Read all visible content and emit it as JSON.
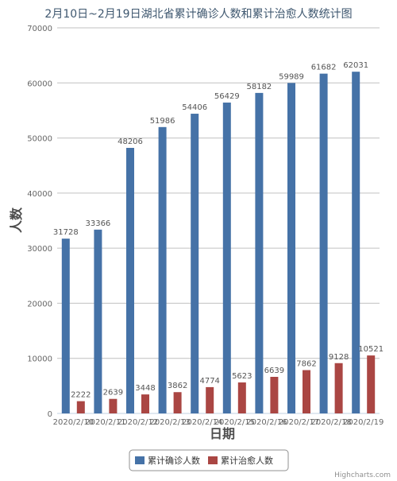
{
  "chart_data": {
    "type": "bar",
    "title": "2月10日~2月19日湖北省累计确诊人数和累计治愈人数统计图",
    "xlabel": "日期",
    "ylabel": "人数",
    "categories": [
      "2020/2/10",
      "2020/2/11",
      "2020/2/12",
      "2020/2/13",
      "2020/2/14",
      "2020/2/15",
      "2020/2/16",
      "2020/2/17",
      "2020/2/18",
      "2020/2/19"
    ],
    "series": [
      {
        "name": "累计确诊人数",
        "color": "#4572a7",
        "values": [
          31728,
          33366,
          48206,
          51986,
          54406,
          56429,
          58182,
          59989,
          61682,
          62031
        ]
      },
      {
        "name": "累计治愈人数",
        "color": "#aa4643",
        "values": [
          2222,
          2639,
          3448,
          3862,
          4774,
          5623,
          6639,
          7862,
          9128,
          10521
        ]
      }
    ],
    "yticks": [
      0,
      10000,
      20000,
      30000,
      40000,
      50000,
      60000,
      70000
    ],
    "ylim": [
      0,
      70000
    ],
    "grid": true,
    "legend_position": "bottom-center"
  },
  "credits": "Highcharts.com"
}
